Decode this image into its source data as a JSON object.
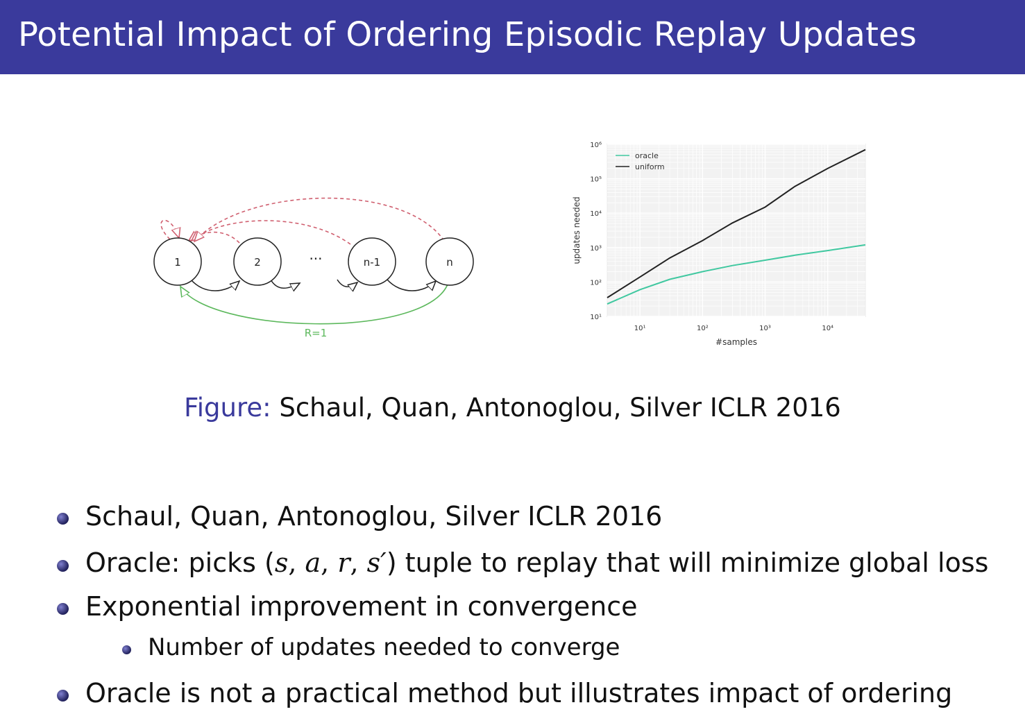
{
  "title": "Potential Impact of Ordering Episodic Replay Updates",
  "diagram": {
    "nodes": [
      "1",
      "2",
      "n-1",
      "n"
    ],
    "ellipsis": "···",
    "reward_label": "R=1",
    "colors": {
      "forward": "#222222",
      "reset": "#d06070",
      "reward": "#5cb85c"
    }
  },
  "chart_data": {
    "type": "line",
    "xlabel": "#samples",
    "ylabel": "updates needed",
    "x_scale": "log",
    "y_scale": "log",
    "x_ticks": [
      "10¹",
      "10²",
      "10³",
      "10⁴"
    ],
    "y_ticks": [
      "10¹",
      "10²",
      "10³",
      "10⁴",
      "10⁵",
      "10⁶"
    ],
    "xlim": [
      3,
      40000
    ],
    "ylim": [
      10,
      1000000
    ],
    "grid": true,
    "legend": "top-left",
    "series": [
      {
        "name": "oracle",
        "color": "#40c8a0",
        "x": [
          3,
          10,
          30,
          100,
          300,
          1000,
          3000,
          10000,
          40000
        ],
        "y": [
          23,
          60,
          120,
          200,
          300,
          430,
          600,
          820,
          1200
        ]
      },
      {
        "name": "uniform",
        "color": "#222222",
        "x": [
          3,
          10,
          30,
          100,
          300,
          1000,
          3000,
          10000,
          40000
        ],
        "y": [
          35,
          140,
          500,
          1600,
          5200,
          15000,
          60000,
          200000,
          700000
        ]
      }
    ]
  },
  "caption": {
    "label": "Figure:",
    "text": " Schaul, Quan, Antonoglou, Silver ICLR 2016"
  },
  "bullets": {
    "b1": "Schaul, Quan, Antonoglou, Silver ICLR 2016",
    "b2_pre": "Oracle: picks (",
    "b2_s": "s",
    "b2_a": "a",
    "b2_r": "r",
    "b2_sp": "s′",
    "b2_post": ") tuple to replay that will minimize global loss",
    "b3": "Exponential improvement in convergence",
    "b3_sub": "Number of updates needed to converge",
    "b4": "Oracle is not a practical method but illustrates impact of ordering"
  }
}
